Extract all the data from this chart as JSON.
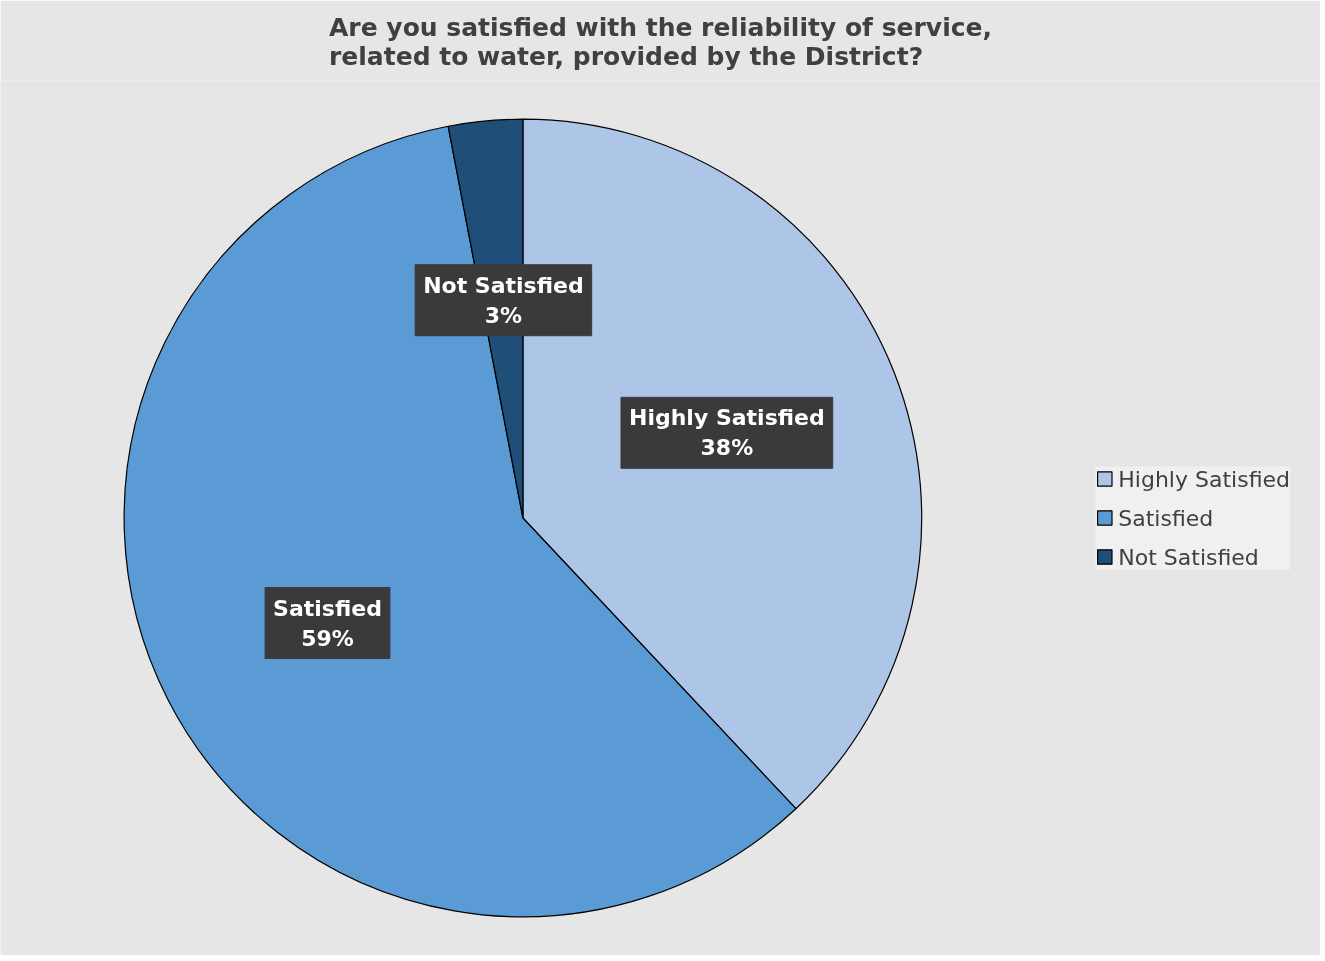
{
  "chart_data": {
    "type": "pie",
    "title": "Are you satisfied with the reliability of service, related to water, provided by the District?",
    "categories": [
      "Highly Satisfied",
      "Satisfied",
      "Not Satisfied"
    ],
    "values": [
      38,
      59,
      3
    ],
    "value_labels": [
      "38%",
      "59%",
      "3%"
    ],
    "colors": [
      "#adc5e7",
      "#5b9bd5",
      "#1f4e79"
    ],
    "legend": "right"
  }
}
